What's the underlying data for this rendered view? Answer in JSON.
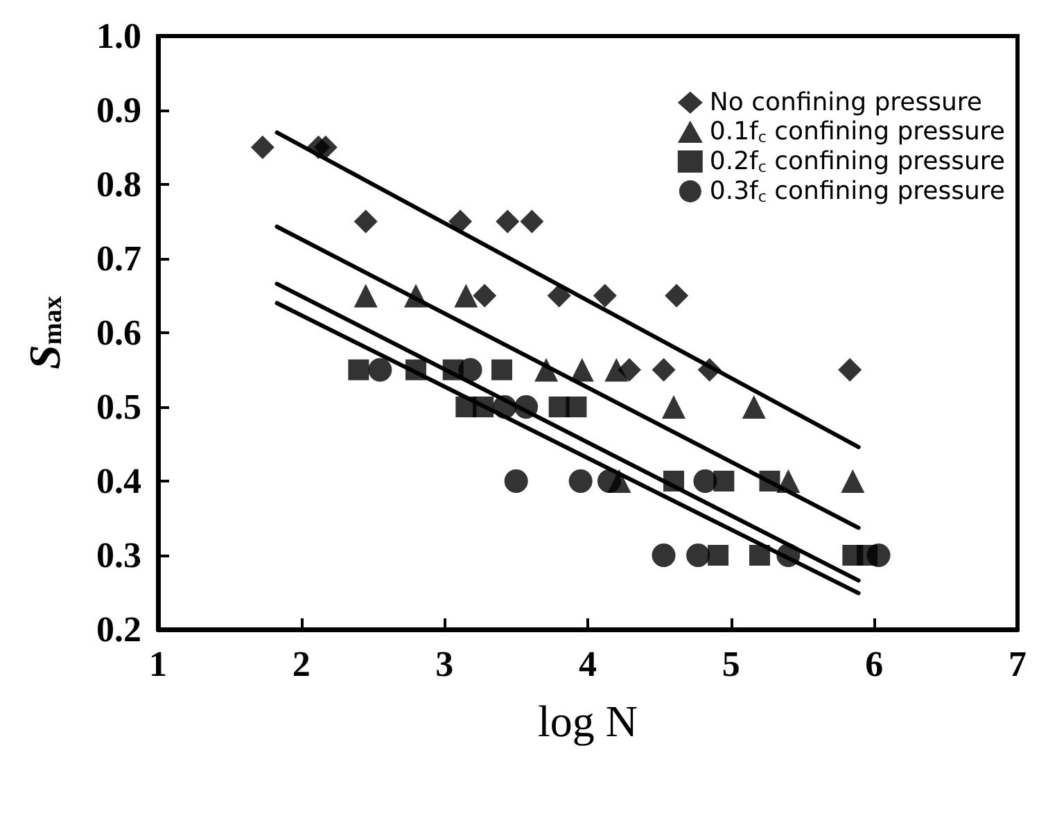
{
  "chart_data": {
    "type": "scatter",
    "xlabel": "log N",
    "ylabel": "S$_{max}$",
    "xlim": [
      1,
      7
    ],
    "ylim": [
      0.2,
      1.0
    ],
    "xticks": [
      1,
      2,
      3,
      4,
      5,
      6,
      7
    ],
    "yticks": [
      0.2,
      0.3,
      0.4,
      0.5,
      0.6,
      0.7,
      0.8,
      0.9,
      {
        "value": 1,
        "label": "1.0"
      }
    ],
    "grid": false,
    "legend": "top right",
    "series": [
      {
        "name": "No confining pressure",
        "color": "#000000",
        "marker": "diamond",
        "x": [
          1.73,
          2.12,
          2.17,
          2.45,
          3.11,
          3.44,
          3.61,
          3.28,
          3.8,
          4.12,
          4.62,
          4.29,
          4.53,
          4.85,
          5.83
        ],
        "values": [
          0.85,
          0.85,
          0.85,
          0.75,
          0.75,
          0.75,
          0.75,
          0.65,
          0.65,
          0.65,
          0.65,
          0.55,
          0.55,
          0.55,
          0.55
        ]
      },
      {
        "name": "0.1f$_{c}$ confining pressure",
        "color": "#000000",
        "marker": "triangle",
        "x": [
          2.45,
          2.8,
          3.15,
          3.71,
          3.96,
          4.2,
          4.6,
          5.16,
          4.22,
          5.4,
          5.85
        ],
        "values": [
          0.65,
          0.65,
          0.65,
          0.55,
          0.55,
          0.55,
          0.5,
          0.5,
          0.4,
          0.4,
          0.4
        ]
      },
      {
        "name": "0.2f$_{c}$ confining pressure",
        "color": "#000000",
        "marker": "square",
        "x": [
          2.4,
          2.8,
          3.06,
          3.4,
          3.15,
          3.27,
          3.8,
          3.92,
          4.6,
          4.95,
          5.27,
          4.91,
          5.2,
          5.85,
          5.95
        ],
        "values": [
          0.55,
          0.55,
          0.55,
          0.55,
          0.5,
          0.5,
          0.5,
          0.5,
          0.4,
          0.4,
          0.4,
          0.3,
          0.3,
          0.3,
          0.3
        ]
      },
      {
        "name": "0.3f$_{c}$ confining pressure",
        "color": "#000000",
        "marker": "circle",
        "x": [
          2.55,
          3.18,
          3.42,
          3.57,
          3.5,
          3.95,
          4.15,
          4.82,
          4.53,
          4.77,
          5.4,
          6.03
        ],
        "values": [
          0.55,
          0.55,
          0.5,
          0.5,
          0.4,
          0.4,
          0.4,
          0.4,
          0.3,
          0.3,
          0.3,
          0.3
        ]
      },
      {
        "type": "line",
        "color": "#000000",
        "marker": "none",
        "line_style": "solid",
        "x": [
          1.83,
          5.89
        ],
        "values": [
          0.87,
          0.446
        ]
      },
      {
        "type": "line",
        "color": "#000000",
        "marker": "none",
        "line_style": "solid",
        "x": [
          1.83,
          5.89
        ],
        "values": [
          0.743,
          0.337
        ]
      },
      {
        "type": "line",
        "color": "#000000",
        "marker": "none",
        "line_style": "solid",
        "x": [
          1.83,
          5.89
        ],
        "values": [
          0.666,
          0.266
        ]
      },
      {
        "type": "line",
        "color": "#000000",
        "marker": "none",
        "line_style": "solid",
        "x": [
          1.83,
          5.89
        ],
        "values": [
          0.64,
          0.249
        ]
      }
    ]
  }
}
